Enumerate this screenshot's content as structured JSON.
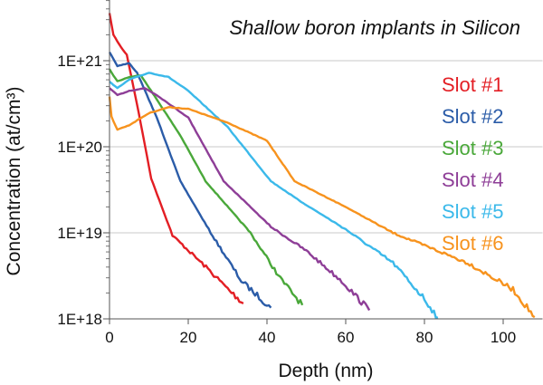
{
  "chart_data": {
    "type": "line",
    "title": "Shallow boron implants in Silicon",
    "xlabel": "Depth (nm)",
    "ylabel": "Concentration (at/cm³)",
    "xlim": [
      0,
      110
    ],
    "ylim": [
      1e+18,
      5e+21
    ],
    "y_scale": "log",
    "x_ticks": [
      0,
      20,
      40,
      60,
      80,
      100
    ],
    "y_ticks": [
      {
        "v": 1e+18,
        "label": "1E+18"
      },
      {
        "v": 1e+19,
        "label": "1E+19"
      },
      {
        "v": 1e+20,
        "label": "1E+20"
      },
      {
        "v": 1e+21,
        "label": "1E+21"
      }
    ],
    "grid": "horizontal at decades",
    "legend": "right",
    "series": [
      {
        "name": "Slot #1",
        "color": "#e31e24",
        "x": [
          0,
          1,
          3,
          4.4,
          7.4,
          10.6,
          16,
          25,
          30,
          34
        ],
        "log10_y": [
          21.55,
          21.3,
          21.15,
          21.07,
          20.4,
          19.63,
          18.97,
          18.58,
          18.35,
          18.18
        ]
      },
      {
        "name": "Slot #2",
        "color": "#2b5ca8",
        "x": [
          0,
          2,
          5,
          7,
          12,
          18,
          25.7,
          33.5,
          41
        ],
        "log10_y": [
          21.1,
          20.94,
          20.97,
          20.86,
          20.34,
          19.6,
          19.0,
          18.44,
          18.13
        ]
      },
      {
        "name": "Slot #3",
        "color": "#4aa83a",
        "x": [
          0,
          2,
          5,
          8,
          12,
          18,
          24.4,
          35.8,
          43.4,
          49
        ],
        "log10_y": [
          20.9,
          20.76,
          20.81,
          20.83,
          20.55,
          20.13,
          19.6,
          19.0,
          18.47,
          18.16
        ]
      },
      {
        "name": "Slot #4",
        "color": "#8e3e97",
        "x": [
          0,
          2,
          5,
          9,
          12,
          20,
          29,
          41,
          50,
          59,
          66
        ],
        "log10_y": [
          20.68,
          20.6,
          20.65,
          20.68,
          20.6,
          20.34,
          19.6,
          19.07,
          18.79,
          18.44,
          18.1
        ]
      },
      {
        "name": "Slot #5",
        "color": "#3bb9ea",
        "x": [
          0,
          2,
          5,
          10,
          15,
          20,
          30,
          41,
          48.7,
          60,
          72,
          79.5,
          83.4
        ],
        "log10_y": [
          20.76,
          20.68,
          20.78,
          20.86,
          20.81,
          20.65,
          20.23,
          19.6,
          19.36,
          19.04,
          18.65,
          18.26,
          18.02
        ]
      },
      {
        "name": "Slot #6",
        "color": "#f7931e",
        "x": [
          0,
          0.5,
          2,
          5,
          10,
          15,
          20,
          30,
          40,
          47,
          60,
          72,
          91,
          102.5,
          108
        ],
        "log10_y": [
          20.58,
          20.35,
          20.2,
          20.25,
          20.39,
          20.46,
          20.44,
          20.28,
          20.07,
          19.6,
          19.3,
          19.0,
          18.65,
          18.34,
          18.02
        ]
      }
    ]
  }
}
